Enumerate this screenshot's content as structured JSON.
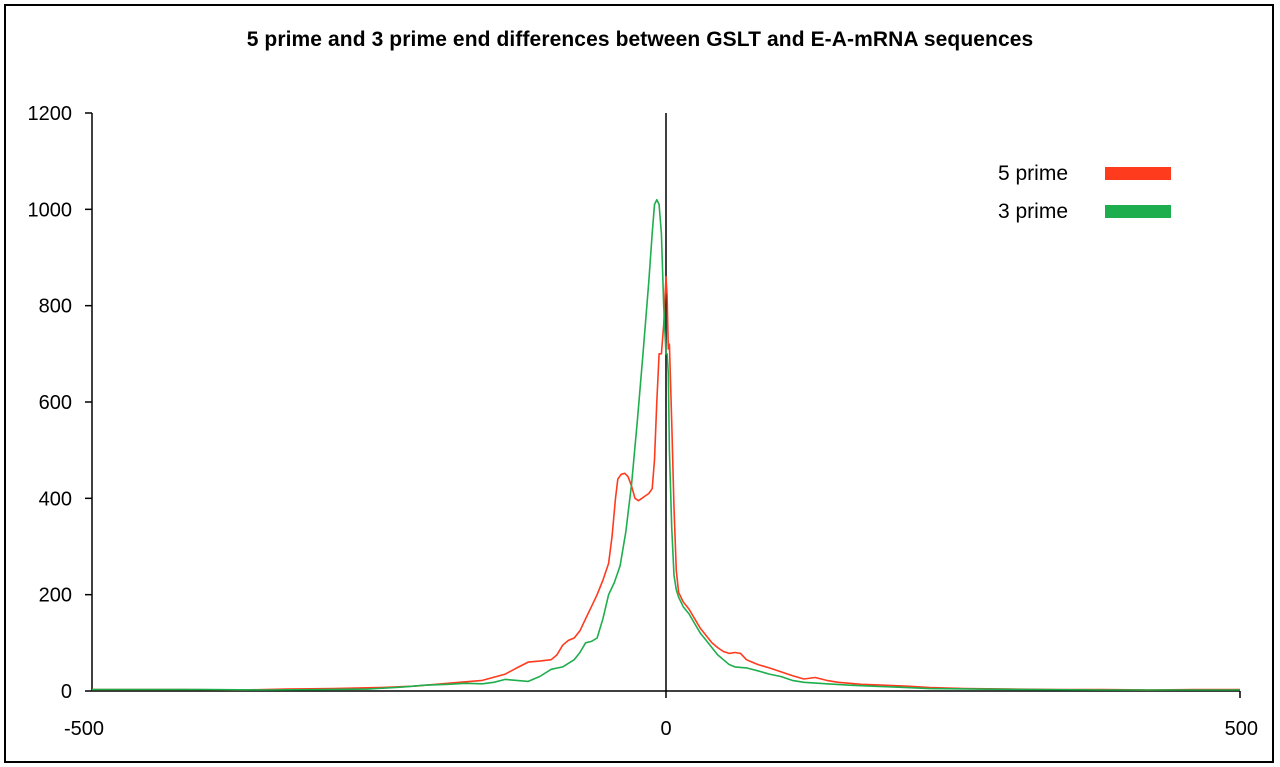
{
  "chart_data": {
    "type": "line",
    "title": "5 prime and 3 prime end differences between GSLT and E-A-mRNA sequences",
    "xlabel": "",
    "ylabel": "",
    "xlim": [
      -500,
      500
    ],
    "ylim": [
      0,
      1200
    ],
    "x_ticks": [
      -500,
      0,
      500
    ],
    "y_ticks": [
      0,
      200,
      400,
      600,
      800,
      1000,
      1200
    ],
    "grid": false,
    "legend_position": "top-right",
    "series": [
      {
        "name": "5 prime",
        "color": "#ff3b1e",
        "points": [
          [
            -500,
            3
          ],
          [
            -420,
            3
          ],
          [
            -370,
            2
          ],
          [
            -330,
            4
          ],
          [
            -290,
            5
          ],
          [
            -250,
            7
          ],
          [
            -220,
            10
          ],
          [
            -200,
            14
          ],
          [
            -180,
            18
          ],
          [
            -160,
            22
          ],
          [
            -140,
            35
          ],
          [
            -130,
            48
          ],
          [
            -120,
            60
          ],
          [
            -110,
            62
          ],
          [
            -100,
            65
          ],
          [
            -95,
            75
          ],
          [
            -90,
            95
          ],
          [
            -85,
            105
          ],
          [
            -80,
            110
          ],
          [
            -75,
            125
          ],
          [
            -70,
            150
          ],
          [
            -65,
            175
          ],
          [
            -60,
            200
          ],
          [
            -55,
            230
          ],
          [
            -50,
            265
          ],
          [
            -47,
            320
          ],
          [
            -44,
            400
          ],
          [
            -42,
            440
          ],
          [
            -39,
            450
          ],
          [
            -36,
            452
          ],
          [
            -33,
            445
          ],
          [
            -30,
            425
          ],
          [
            -27,
            400
          ],
          [
            -24,
            395
          ],
          [
            -21,
            400
          ],
          [
            -18,
            405
          ],
          [
            -15,
            410
          ],
          [
            -12,
            420
          ],
          [
            -10,
            480
          ],
          [
            -8,
            600
          ],
          [
            -6,
            700
          ],
          [
            -4,
            700
          ],
          [
            -2,
            760
          ],
          [
            0,
            860
          ],
          [
            1,
            820
          ],
          [
            2,
            710
          ],
          [
            3,
            720
          ],
          [
            5,
            560
          ],
          [
            7,
            380
          ],
          [
            9,
            250
          ],
          [
            11,
            205
          ],
          [
            15,
            185
          ],
          [
            20,
            170
          ],
          [
            25,
            150
          ],
          [
            30,
            130
          ],
          [
            35,
            115
          ],
          [
            40,
            100
          ],
          [
            45,
            90
          ],
          [
            50,
            82
          ],
          [
            55,
            78
          ],
          [
            60,
            80
          ],
          [
            65,
            78
          ],
          [
            70,
            65
          ],
          [
            75,
            60
          ],
          [
            80,
            55
          ],
          [
            90,
            48
          ],
          [
            100,
            40
          ],
          [
            110,
            32
          ],
          [
            120,
            25
          ],
          [
            130,
            28
          ],
          [
            140,
            22
          ],
          [
            150,
            18
          ],
          [
            170,
            14
          ],
          [
            190,
            12
          ],
          [
            210,
            10
          ],
          [
            230,
            7
          ],
          [
            260,
            5
          ],
          [
            300,
            4
          ],
          [
            340,
            3
          ],
          [
            380,
            3
          ],
          [
            420,
            2
          ],
          [
            460,
            3
          ],
          [
            500,
            3
          ]
        ]
      },
      {
        "name": "3 prime",
        "color": "#1fae4e",
        "points": [
          [
            -500,
            3
          ],
          [
            -400,
            3
          ],
          [
            -350,
            2
          ],
          [
            -300,
            3
          ],
          [
            -260,
            4
          ],
          [
            -230,
            8
          ],
          [
            -210,
            12
          ],
          [
            -190,
            14
          ],
          [
            -175,
            16
          ],
          [
            -160,
            15
          ],
          [
            -150,
            18
          ],
          [
            -140,
            24
          ],
          [
            -130,
            22
          ],
          [
            -120,
            20
          ],
          [
            -110,
            30
          ],
          [
            -100,
            45
          ],
          [
            -90,
            50
          ],
          [
            -80,
            65
          ],
          [
            -75,
            80
          ],
          [
            -70,
            100
          ],
          [
            -65,
            103
          ],
          [
            -60,
            110
          ],
          [
            -55,
            150
          ],
          [
            -50,
            200
          ],
          [
            -45,
            225
          ],
          [
            -40,
            260
          ],
          [
            -35,
            330
          ],
          [
            -30,
            430
          ],
          [
            -25,
            560
          ],
          [
            -20,
            700
          ],
          [
            -15,
            850
          ],
          [
            -12,
            950
          ],
          [
            -10,
            1010
          ],
          [
            -8,
            1020
          ],
          [
            -6,
            1010
          ],
          [
            -4,
            950
          ],
          [
            -2,
            800
          ],
          [
            0,
            700
          ],
          [
            1,
            700
          ],
          [
            2,
            660
          ],
          [
            3,
            500
          ],
          [
            5,
            340
          ],
          [
            7,
            240
          ],
          [
            9,
            210
          ],
          [
            11,
            195
          ],
          [
            15,
            175
          ],
          [
            20,
            160
          ],
          [
            25,
            140
          ],
          [
            30,
            120
          ],
          [
            35,
            105
          ],
          [
            40,
            90
          ],
          [
            45,
            75
          ],
          [
            50,
            65
          ],
          [
            55,
            55
          ],
          [
            60,
            50
          ],
          [
            70,
            48
          ],
          [
            80,
            42
          ],
          [
            90,
            35
          ],
          [
            100,
            30
          ],
          [
            110,
            22
          ],
          [
            120,
            18
          ],
          [
            140,
            15
          ],
          [
            160,
            12
          ],
          [
            180,
            10
          ],
          [
            200,
            8
          ],
          [
            230,
            5
          ],
          [
            270,
            4
          ],
          [
            320,
            3
          ],
          [
            380,
            2
          ],
          [
            440,
            2
          ],
          [
            500,
            2
          ]
        ]
      }
    ]
  }
}
